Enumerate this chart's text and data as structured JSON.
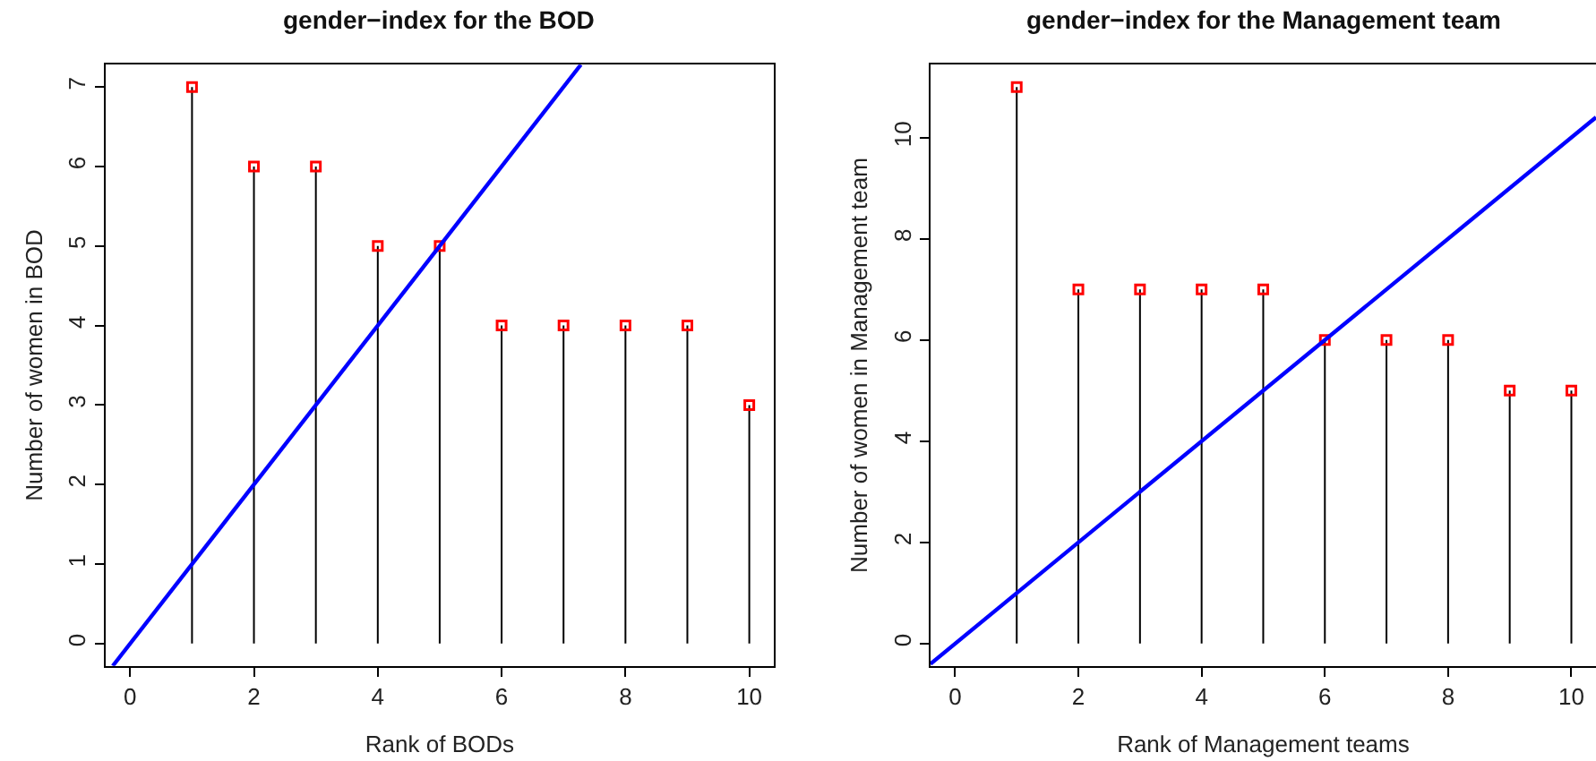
{
  "chart_data": [
    {
      "type": "lollipop",
      "title": "gender−index for the BOD",
      "xlabel": "Rank of BODs",
      "ylabel": "Number of women in BOD",
      "x": [
        1,
        2,
        3,
        4,
        5,
        6,
        7,
        8,
        9,
        10
      ],
      "xlim": [
        -0.4,
        10.4
      ],
      "xticks": [
        0,
        2,
        4,
        6,
        8,
        10
      ],
      "ylim": [
        -0.28,
        7.28
      ],
      "yticks": [
        0,
        1,
        2,
        3,
        4,
        5,
        6,
        7
      ],
      "series": [
        {
          "color": "#ff0000",
          "marker": "square",
          "values": [
            7,
            6,
            6,
            5,
            5,
            4,
            4,
            4,
            4,
            3
          ]
        },
        {
          "type": "line",
          "color": "#0000ff",
          "x": [
            -0.28,
            7.28
          ],
          "values": [
            -0.28,
            7.28
          ]
        }
      ]
    },
    {
      "type": "lollipop",
      "title": "gender−index for the Management team",
      "xlabel": "Rank of Management teams",
      "ylabel": "Number of women in Management team",
      "x": [
        1,
        2,
        3,
        4,
        5,
        6,
        7,
        8,
        9,
        10
      ],
      "xlim": [
        -0.4,
        10.4
      ],
      "xticks": [
        0,
        2,
        4,
        6,
        8,
        10
      ],
      "ylim": [
        -0.44,
        11.44
      ],
      "yticks": [
        0,
        2,
        4,
        6,
        8,
        10
      ],
      "series": [
        {
          "color": "#ff0000",
          "marker": "square",
          "values": [
            11,
            7,
            7,
            7,
            7,
            6,
            6,
            6,
            5,
            5
          ]
        },
        {
          "type": "line",
          "color": "#0000ff",
          "x": [
            -0.4,
            10.4
          ],
          "values": [
            -0.4,
            10.4
          ]
        }
      ]
    }
  ]
}
